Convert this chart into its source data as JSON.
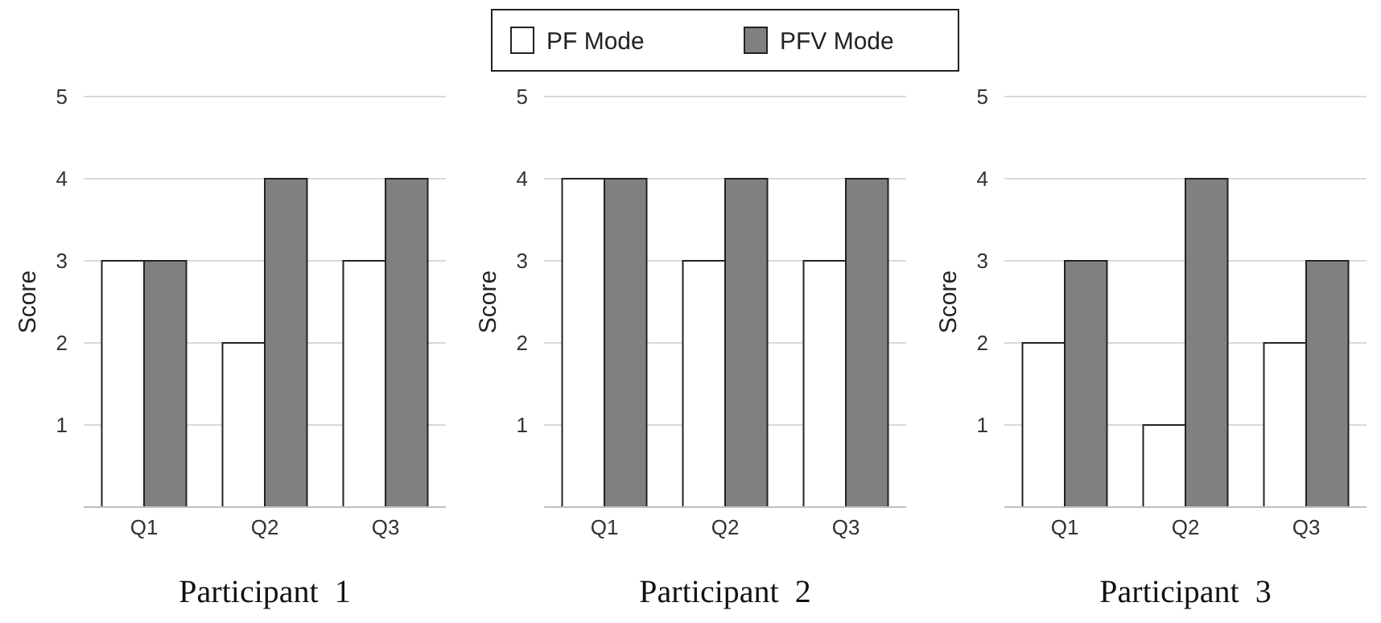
{
  "chart_data": [
    {
      "type": "bar",
      "title": "Participant  1",
      "ylabel": "Score",
      "categories": [
        "Q1",
        "Q2",
        "Q3"
      ],
      "series": [
        {
          "color": "#ffffff",
          "values": [
            3,
            2,
            3
          ]
        },
        {
          "color": "#808080",
          "values": [
            3,
            4,
            4
          ]
        }
      ],
      "ylim": [
        0,
        5
      ],
      "yticks": [
        1,
        2,
        3,
        4,
        5
      ],
      "grid": "y",
      "legend": false
    },
    {
      "type": "bar",
      "title": "Participant  2",
      "ylabel": "Score",
      "categories": [
        "Q1",
        "Q2",
        "Q3"
      ],
      "series": [
        {
          "name": "PF Mode",
          "color": "#ffffff",
          "values": [
            4,
            3,
            3
          ]
        },
        {
          "name": "PFV Mode",
          "color": "#808080",
          "values": [
            4,
            4,
            4
          ]
        }
      ],
      "ylim": [
        0,
        5
      ],
      "yticks": [
        1,
        2,
        3,
        4,
        5
      ],
      "grid": "y",
      "legend": "top"
    },
    {
      "type": "bar",
      "title": "Participant  3",
      "ylabel": "Score",
      "categories": [
        "Q1",
        "Q2",
        "Q3"
      ],
      "series": [
        {
          "color": "#ffffff",
          "values": [
            2,
            1,
            2
          ]
        },
        {
          "color": "#808080",
          "values": [
            3,
            4,
            3
          ]
        }
      ],
      "ylim": [
        0,
        5
      ],
      "yticks": [
        1,
        2,
        3,
        4,
        5
      ],
      "grid": "y",
      "legend": false
    }
  ]
}
